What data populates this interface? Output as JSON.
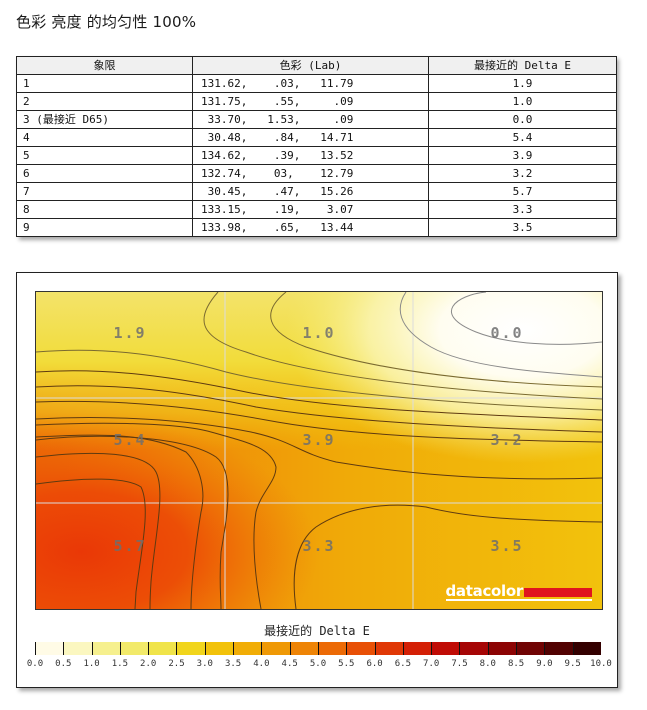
{
  "page": {
    "title": "色彩 亮度 的均匀性 100%"
  },
  "table": {
    "headers": [
      "象限",
      "色彩 (Lab)",
      "最接近的 Delta E"
    ],
    "rows": [
      {
        "quadrant": "1",
        "lab": "131.62,    .03,   11.79",
        "delta_e": "1.9"
      },
      {
        "quadrant": "2",
        "lab": "131.75,    .55,     .09",
        "delta_e": "1.0"
      },
      {
        "quadrant": "3 (最接近 D65)",
        "lab": " 33.70,   1.53,     .09",
        "delta_e": "0.0"
      },
      {
        "quadrant": "4",
        "lab": " 30.48,    .84,   14.71",
        "delta_e": "5.4"
      },
      {
        "quadrant": "5",
        "lab": "134.62,    .39,   13.52",
        "delta_e": "3.9"
      },
      {
        "quadrant": "6",
        "lab": "132.74,    03,    12.79",
        "delta_e": "3.2"
      },
      {
        "quadrant": "7",
        "lab": " 30.45,    .47,   15.26",
        "delta_e": "5.7"
      },
      {
        "quadrant": "8",
        "lab": "133.15,    .19,    3.07",
        "delta_e": "3.3"
      },
      {
        "quadrant": "9",
        "lab": "133.98,    .65,   13.44",
        "delta_e": "3.5"
      }
    ]
  },
  "chart": {
    "brand": "datacolor",
    "legend_title": "最接近的 Delta E",
    "colors": {
      "brand_red": "#e0141e",
      "contour": "#6b4a1a",
      "grid": "#d8d8d8"
    }
  },
  "chart_data": {
    "type": "heatmap",
    "title": "色彩 亮度 的均匀性 100%",
    "xlabel": "",
    "ylabel": "",
    "grid": {
      "rows": 3,
      "cols": 3
    },
    "cells": [
      [
        1.9,
        1.0,
        0.0
      ],
      [
        5.4,
        3.9,
        3.2
      ],
      [
        5.7,
        3.3,
        3.5
      ]
    ],
    "cell_labels": [
      [
        "1.9",
        "1.0",
        "0.0"
      ],
      [
        "5.4",
        "3.9",
        "3.2"
      ],
      [
        "5.7",
        "3.3",
        "3.5"
      ]
    ],
    "colorbar": {
      "label": "最接近的 Delta E",
      "range": [
        0,
        10
      ],
      "ticks": [
        "0.0",
        "0.5",
        "1.0",
        "1.5",
        "2.0",
        "2.5",
        "3.0",
        "3.5",
        "4.0",
        "4.5",
        "5.0",
        "5.5",
        "6.0",
        "6.5",
        "7.0",
        "7.5",
        "8.0",
        "8.5",
        "9.0",
        "9.5",
        "10.0"
      ],
      "segment_colors": [
        "#fffbe6",
        "#fbf7c0",
        "#f6f08e",
        "#f2ea6a",
        "#f0e44a",
        "#f1d51c",
        "#f2c20a",
        "#f1ad06",
        "#ef9906",
        "#ee8406",
        "#ec6a06",
        "#e85006",
        "#e03806",
        "#d42006",
        "#c00c06",
        "#a60606",
        "#8c0404",
        "#700404",
        "#520202",
        "#340000"
      ],
      "legend_position": "bottom"
    },
    "contour_levels": [
      0.5,
      1.0,
      1.5,
      2.0,
      2.5,
      3.0,
      3.5,
      4.0,
      4.5,
      5.0,
      5.5
    ]
  }
}
